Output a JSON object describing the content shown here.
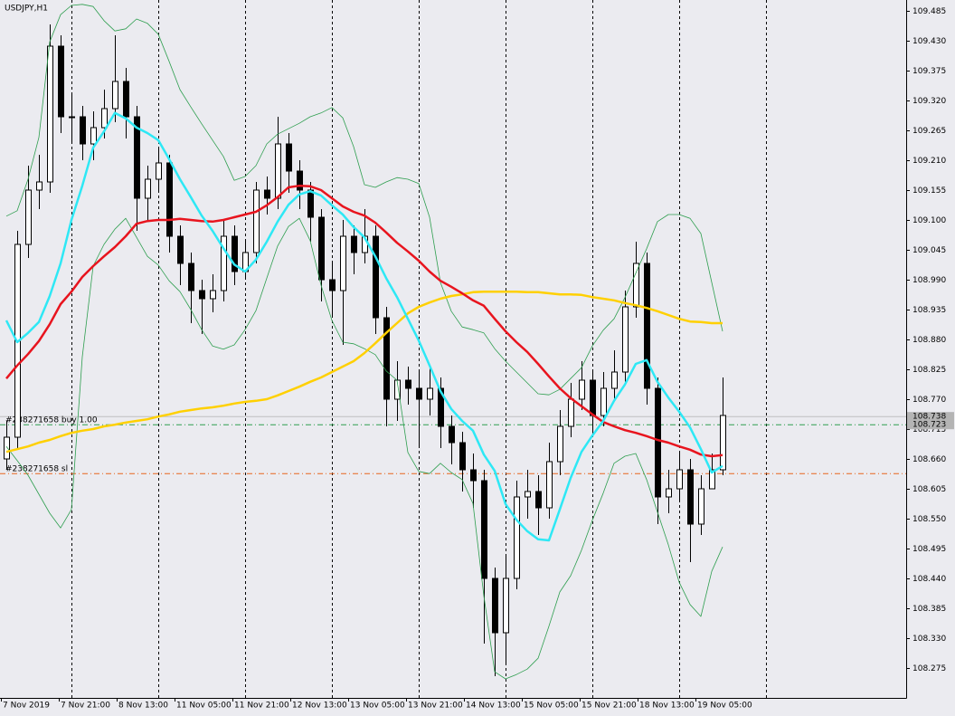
{
  "chart_data": {
    "type": "candlestick",
    "title": "USDJPY,H1",
    "x_labels": [
      "7 Nov 2019",
      "7 Nov 21:00",
      "8 Nov 13:00",
      "11 Nov 05:00",
      "11 Nov 21:00",
      "12 Nov 13:00",
      "13 Nov 05:00",
      "13 Nov 21:00",
      "14 Nov 13:00",
      "15 Nov 05:00",
      "15 Nov 21:00",
      "18 Nov 13:00",
      "19 Nov 05:00"
    ],
    "open": [
      108.66,
      108.7,
      109.055,
      109.155,
      109.17,
      109.42,
      109.29,
      109.29,
      109.24,
      109.27,
      109.305,
      109.355,
      109.29,
      109.14,
      109.175,
      109.205,
      109.07,
      109.02,
      108.97,
      108.955,
      108.97,
      109.07,
      109.005,
      109.04,
      109.155,
      109.14,
      109.24,
      109.19,
      109.155,
      109.105,
      108.99,
      108.97,
      109.07,
      109.04,
      109.07,
      108.92,
      108.77,
      108.805,
      108.79,
      108.77,
      108.79,
      108.72,
      108.69,
      108.64,
      108.62,
      108.44,
      108.34,
      108.44,
      108.59,
      108.6,
      108.57,
      108.655,
      108.72,
      108.77,
      108.805,
      108.74,
      108.79,
      108.82,
      108.94,
      109.02,
      108.79,
      108.59,
      108.605,
      108.64,
      108.54,
      108.605,
      108.64
    ],
    "high": [
      108.73,
      109.08,
      109.2,
      109.22,
      109.46,
      109.44,
      109.33,
      109.31,
      109.3,
      109.34,
      109.44,
      109.38,
      109.31,
      109.2,
      109.23,
      109.22,
      109.09,
      109.04,
      108.99,
      109.0,
      109.1,
      109.09,
      109.06,
      109.17,
      109.18,
      109.29,
      109.26,
      109.21,
      109.17,
      109.12,
      109.02,
      109.1,
      109.09,
      109.12,
      109.09,
      108.94,
      108.84,
      108.83,
      108.82,
      108.83,
      108.81,
      108.74,
      108.71,
      108.67,
      108.64,
      108.46,
      108.48,
      108.62,
      108.64,
      108.63,
      108.69,
      108.75,
      108.8,
      108.84,
      108.82,
      108.82,
      108.86,
      108.97,
      109.06,
      109.04,
      108.81,
      108.64,
      108.67,
      108.66,
      108.63,
      108.67,
      108.81
    ],
    "low": [
      108.64,
      108.68,
      109.03,
      109.12,
      109.15,
      109.26,
      109.24,
      109.21,
      109.21,
      109.25,
      109.28,
      109.25,
      109.08,
      109.1,
      109.15,
      109.04,
      108.98,
      108.91,
      108.89,
      108.93,
      108.95,
      108.98,
      108.99,
      109.02,
      109.11,
      109.12,
      109.15,
      109.12,
      109.06,
      108.95,
      108.92,
      108.87,
      109.0,
      109.02,
      108.89,
      108.72,
      108.73,
      108.76,
      108.68,
      108.74,
      108.68,
      108.65,
      108.6,
      108.57,
      108.32,
      108.26,
      108.28,
      108.42,
      108.55,
      108.52,
      108.55,
      108.63,
      108.7,
      108.75,
      108.7,
      108.72,
      108.77,
      108.8,
      108.92,
      108.76,
      108.54,
      108.56,
      108.58,
      108.47,
      108.52,
      108.61,
      108.63
    ],
    "close": [
      108.7,
      109.055,
      109.155,
      109.17,
      109.42,
      109.29,
      109.29,
      109.24,
      109.27,
      109.305,
      109.355,
      109.29,
      109.14,
      109.175,
      109.205,
      109.07,
      109.02,
      108.97,
      108.955,
      108.97,
      109.07,
      109.005,
      109.04,
      109.155,
      109.14,
      109.24,
      109.19,
      109.155,
      109.105,
      108.99,
      108.97,
      109.07,
      109.04,
      109.07,
      108.92,
      108.77,
      108.805,
      108.79,
      108.77,
      108.79,
      108.72,
      108.69,
      108.64,
      108.62,
      108.44,
      108.34,
      108.44,
      108.59,
      108.6,
      108.57,
      108.655,
      108.72,
      108.77,
      108.805,
      108.74,
      108.79,
      108.82,
      108.94,
      109.02,
      108.79,
      108.59,
      108.605,
      108.64,
      108.54,
      108.605,
      108.64,
      108.74
    ],
    "series": [
      {
        "color": "#2e9e4f",
        "width": 0.8,
        "values": [
          109.107,
          109.117,
          109.175,
          109.252,
          109.428,
          109.478,
          109.495,
          109.497,
          109.493,
          109.467,
          109.448,
          109.452,
          109.47,
          109.462,
          109.442,
          109.392,
          109.34,
          109.308,
          109.277,
          109.247,
          109.217,
          109.173,
          109.18,
          109.2,
          109.24,
          109.258,
          109.268,
          109.278,
          109.29,
          109.297,
          109.307,
          109.288,
          109.235,
          109.165,
          109.16,
          109.17,
          109.178,
          109.175,
          109.167,
          109.105,
          108.985,
          108.932,
          108.903,
          108.898,
          108.892,
          108.863,
          108.84,
          108.82,
          108.8,
          108.78,
          108.778,
          108.788,
          108.808,
          108.828,
          108.868,
          108.897,
          108.918,
          108.957,
          109.002,
          109.047,
          109.097,
          109.11,
          109.11,
          109.103,
          109.075,
          108.985,
          108.895
        ]
      },
      {
        "color": "#2e9e4f",
        "width": 0.8,
        "values": [
          108.683,
          108.657,
          108.63,
          108.595,
          108.56,
          108.533,
          108.567,
          108.848,
          109.015,
          109.055,
          109.083,
          109.103,
          109.068,
          109.033,
          109.017,
          108.988,
          108.968,
          108.935,
          108.898,
          108.868,
          108.862,
          108.87,
          108.898,
          108.933,
          108.993,
          109.052,
          109.088,
          109.103,
          109.062,
          108.98,
          108.915,
          108.875,
          108.872,
          108.863,
          108.852,
          108.822,
          108.805,
          108.672,
          108.637,
          108.633,
          108.652,
          108.635,
          108.622,
          108.578,
          108.408,
          108.268,
          108.255,
          108.263,
          108.273,
          108.293,
          108.352,
          108.415,
          108.445,
          108.492,
          108.547,
          108.597,
          108.652,
          108.665,
          108.67,
          108.622,
          108.562,
          108.502,
          108.433,
          108.392,
          108.37,
          108.453,
          108.498
        ]
      },
      {
        "color": "#ffd000",
        "width": 2.5,
        "values": [
          108.673,
          108.678,
          108.683,
          108.69,
          108.695,
          108.702,
          108.708,
          108.712,
          108.715,
          108.72,
          108.723,
          108.727,
          108.73,
          108.733,
          108.738,
          108.742,
          108.747,
          108.75,
          108.753,
          108.755,
          108.758,
          108.762,
          108.765,
          108.767,
          108.77,
          108.777,
          108.785,
          108.793,
          108.802,
          108.81,
          108.82,
          108.83,
          108.84,
          108.855,
          108.873,
          108.892,
          108.91,
          108.928,
          108.94,
          108.948,
          108.955,
          108.96,
          108.963,
          108.967,
          108.968,
          108.968,
          108.968,
          108.968,
          108.967,
          108.967,
          108.965,
          108.963,
          108.963,
          108.962,
          108.958,
          108.955,
          108.952,
          108.947,
          108.943,
          108.938,
          108.932,
          108.925,
          108.918,
          108.913,
          108.912,
          108.91,
          108.91
        ]
      },
      {
        "color": "#e8141e",
        "width": 2.5,
        "values": [
          108.808,
          108.832,
          108.853,
          108.877,
          108.908,
          108.945,
          108.968,
          108.995,
          109.015,
          109.033,
          109.05,
          109.07,
          109.093,
          109.098,
          109.1,
          109.1,
          109.102,
          109.1,
          109.098,
          109.097,
          109.1,
          109.105,
          109.11,
          109.115,
          109.127,
          109.142,
          109.16,
          109.163,
          109.162,
          109.155,
          109.14,
          109.125,
          109.115,
          109.108,
          109.095,
          109.077,
          109.058,
          109.042,
          109.025,
          109.005,
          108.988,
          108.977,
          108.965,
          108.952,
          108.942,
          108.918,
          108.895,
          108.875,
          108.857,
          108.835,
          108.812,
          108.79,
          108.772,
          108.757,
          108.742,
          108.728,
          108.72,
          108.713,
          108.708,
          108.702,
          108.695,
          108.69,
          108.683,
          108.677,
          108.668,
          108.665,
          108.667
        ]
      },
      {
        "color": "#2ee8f5",
        "width": 2.5,
        "values": [
          108.915,
          108.875,
          108.892,
          108.912,
          108.96,
          109.02,
          109.1,
          109.163,
          109.233,
          109.263,
          109.297,
          109.287,
          109.27,
          109.26,
          109.247,
          109.212,
          109.175,
          109.142,
          109.108,
          109.08,
          109.048,
          109.018,
          109.005,
          109.027,
          109.06,
          109.097,
          109.128,
          109.147,
          109.153,
          109.145,
          109.127,
          109.11,
          109.087,
          109.068,
          109.033,
          108.993,
          108.958,
          108.918,
          108.878,
          108.832,
          108.785,
          108.752,
          108.73,
          108.712,
          108.668,
          108.638,
          108.577,
          108.548,
          108.527,
          108.512,
          108.51,
          108.567,
          108.625,
          108.673,
          108.703,
          108.73,
          108.767,
          108.797,
          108.835,
          108.842,
          108.802,
          108.773,
          108.747,
          108.718,
          108.678,
          108.635,
          108.647
        ]
      }
    ],
    "levels": [
      {
        "label": "#238271658 buy 1.00",
        "value": 108.723,
        "color": "#2e9e4f"
      },
      {
        "label": "#238271658 sl",
        "value": 108.633,
        "color": "#e8641e"
      }
    ],
    "bid": {
      "value": 108.738,
      "color": "#c0c0c0"
    },
    "ylim": [
      108.22,
      109.505
    ],
    "yticks": [
      109.485,
      {
        "value": 109.43,
        "label": "109.430"
      },
      109.375,
      {
        "value": 109.32,
        "label": "109.320"
      },
      109.265,
      {
        "value": 109.21,
        "label": "109.210"
      },
      109.155,
      {
        "value": 109.1,
        "label": "109.100"
      },
      109.045,
      {
        "value": 108.99,
        "label": "108.990"
      },
      108.935,
      {
        "value": 108.88,
        "label": "108.880"
      },
      108.825,
      {
        "value": 108.77,
        "label": "108.770"
      },
      108.715,
      {
        "value": 108.66,
        "label": "108.660"
      },
      108.605,
      {
        "value": 108.55,
        "label": "108.550"
      },
      108.495,
      {
        "value": 108.44,
        "label": "108.440"
      },
      108.385,
      {
        "value": 108.33,
        "label": "108.330"
      },
      108.275
    ]
  }
}
